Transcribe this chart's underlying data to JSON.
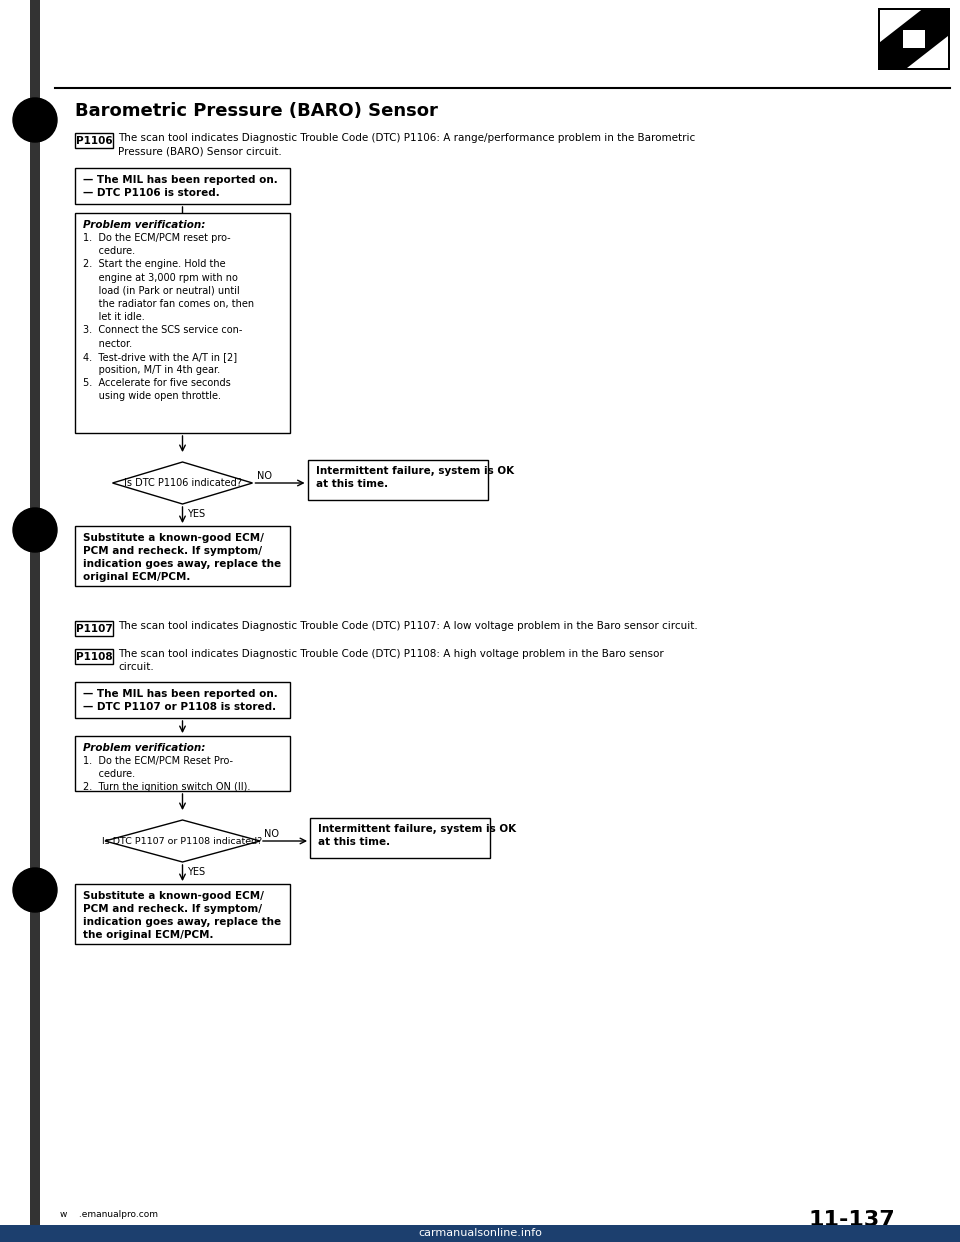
{
  "title": "Barometric Pressure (BARO) Sensor",
  "page_number": "11-137",
  "website": "w    .emanualpro.com",
  "watermark": "carmanualsonline.info",
  "bg_color": "#ffffff",
  "p1106_label": "P1106",
  "p1106_text_line1": "The scan tool indicates Diagnostic Trouble Code (DTC) P1106: A range/performance problem in the Barometric",
  "p1106_text_line2": "Pressure (BARO) Sensor circuit.",
  "box1_line1": "— The MIL has been reported on.",
  "box1_line2": "— DTC P1106 is stored.",
  "prob_verif_title": "Problem verification:",
  "steps1": [
    "1.  Do the ECM/PCM reset pro-",
    "     cedure.",
    "2.  Start the engine. Hold the",
    "     engine at 3,000 rpm with no",
    "     load (in Park or neutral) until",
    "     the radiator fan comes on, then",
    "     let it idle.",
    "3.  Connect the SCS service con-",
    "     nector.",
    "4.  Test-drive with the A/T in [2]",
    "     position, M/T in 4th gear.",
    "5.  Accelerate for five seconds",
    "     using wide open throttle."
  ],
  "diamond1_text": "Is DTC P1106 indicated?",
  "no_label": "NO",
  "intermittent1_line1": "Intermittent failure, system is OK",
  "intermittent1_line2": "at this time.",
  "yes_label": "YES",
  "box3_lines": [
    "Substitute a known-good ECM/",
    "PCM and recheck. If symptom/",
    "indication goes away, replace the",
    "original ECM/PCM."
  ],
  "p1107_label": "P1107",
  "p1107_text": "The scan tool indicates Diagnostic Trouble Code (DTC) P1107: A low voltage problem in the Baro sensor circuit.",
  "p1108_label": "P1108",
  "p1108_text_line1": "The scan tool indicates Diagnostic Trouble Code (DTC) P1108: A high voltage problem in the Baro sensor",
  "p1108_text_line2": "circuit.",
  "box4_line1": "— The MIL has been reported on.",
  "box4_line2": "— DTC P1107 or P1108 is stored.",
  "prob_verif2_title": "Problem verification:",
  "steps2": [
    "1.  Do the ECM/PCM Reset Pro-",
    "     cedure.",
    "2.  Turn the ignition switch ON (II)."
  ],
  "diamond2_text": "Is DTC P1107 or P1108 indicated?",
  "no_label2": "NO",
  "intermittent2_line1": "Intermittent failure, system is OK",
  "intermittent2_line2": "at this time.",
  "yes_label2": "YES",
  "box6_lines": [
    "Substitute a known-good ECM/",
    "PCM and recheck. If symptom/",
    "indication goes away, replace the",
    "the original ECM/PCM."
  ]
}
